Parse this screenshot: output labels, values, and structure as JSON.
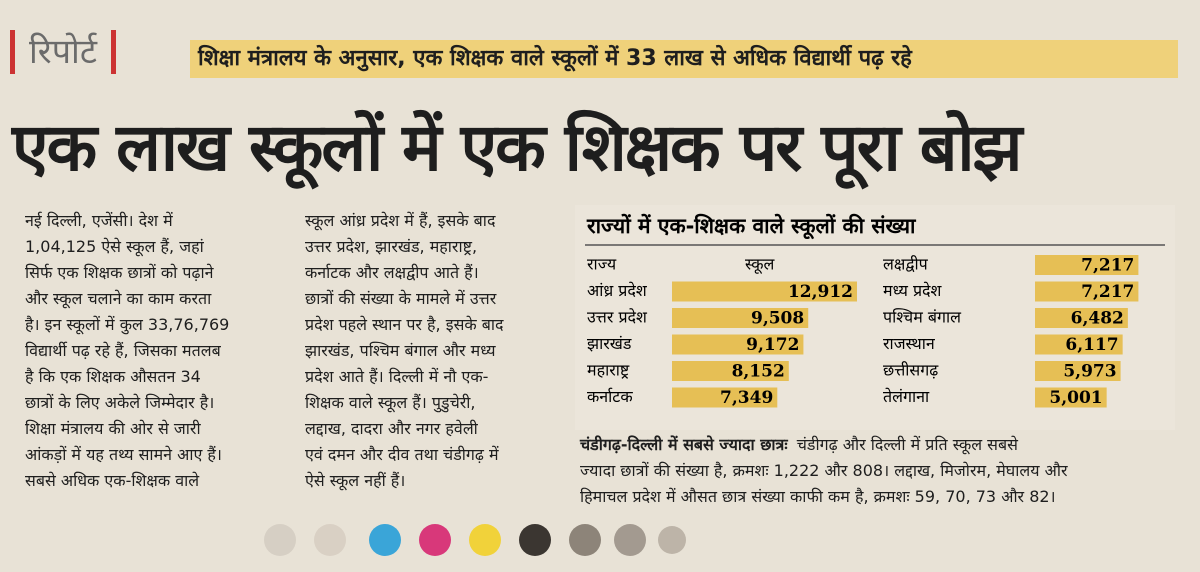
{
  "header": {
    "label": "रिपोर्ट",
    "strap": "शिक्षा मंत्रालय के अनुसार, एक शिक्षक वाले स्कूलों में 33 लाख से अधिक विद्यार्थी पढ़ रहे",
    "headline": "एक लाख स्कूलों में एक शिक्षक पर पूरा बोझ"
  },
  "column1": {
    "lines": [
      "नई दिल्ली, एजेंसी। देश में",
      "1,04,125 ऐसे स्कूल हैं, जहां",
      "सिर्फ एक शिक्षक छात्रों को पढ़ाने",
      "और स्कूल चलाने का काम करता",
      "है। इन स्कूलों में कुल 33,76,769",
      "विद्यार्थी पढ़ रहे हैं, जिसका मतलब",
      "है कि एक शिक्षक औसतन 34",
      "छात्रों के लिए अकेले जिम्मेदार है।",
      "शिक्षा मंत्रालय की ओर से जारी",
      "आंकड़ों में यह तथ्य सामने आए हैं।",
      "सबसे अधिक एक-शिक्षक वाले"
    ]
  },
  "column2": {
    "lines": [
      "स्कूल आंध्र प्रदेश में हैं, इसके बाद",
      "उत्तर प्रदेश, झारखंड, महाराष्ट्र,",
      "कर्नाटक और लक्षद्वीप आते हैं।",
      "छात्रों की संख्या के मामले में उत्तर",
      "प्रदेश पहले स्थान पर है, इसके बाद",
      "झारखंड, पश्चिम बंगाल और मध्य",
      "प्रदेश आते हैं। दिल्ली में नौ एक-",
      "शिक्षक वाले स्कूल हैं। पुडुचेरी,",
      "लद्दाख, दादरा और नगर हवेली",
      "एवं दमन और दीव तथा चंडीगढ़ में",
      "ऐसे स्कूल नहीं हैं।"
    ]
  },
  "chart_data": {
    "type": "bar",
    "title": "राज्यों में एक-शिक्षक वाले स्कूलों की संख्या",
    "category_header": "राज्य",
    "value_header": "स्कूल",
    "color": "#e6bf55",
    "categories": [
      "आंध्र प्रदेश",
      "उत्तर प्रदेश",
      "झारखंड",
      "महाराष्ट्र",
      "कर्नाटक",
      "लक्षद्वीप",
      "मध्य प्रदेश",
      "पश्चिम बंगाल",
      "राजस्थान",
      "छत्तीसगढ़",
      "तेलंगाना"
    ],
    "values": [
      12912,
      9508,
      9172,
      8152,
      7349,
      7217,
      7217,
      6482,
      6117,
      5973,
      5001
    ],
    "value_labels": [
      "12,912",
      "9,508",
      "9,172",
      "8,152",
      "7,349",
      "7,217",
      "7,217",
      "6,482",
      "6,117",
      "5,973",
      "5,001"
    ]
  },
  "caption": {
    "heading": "चंडीगढ़-दिल्ली में सबसे ज्यादा छात्रः",
    "lines": [
      "चंडीगढ़ और दिल्ली में प्रति स्कूल सबसे",
      "ज्यादा छात्रों की संख्या है, क्रमशः 1,222 और 808। लद्दाख, मिजोरम, मेघालय और",
      "हिमाचल प्रदेश में औसत छात्र संख्या काफी कम है, क्रमशः 59, 70, 73 और 82।"
    ]
  }
}
